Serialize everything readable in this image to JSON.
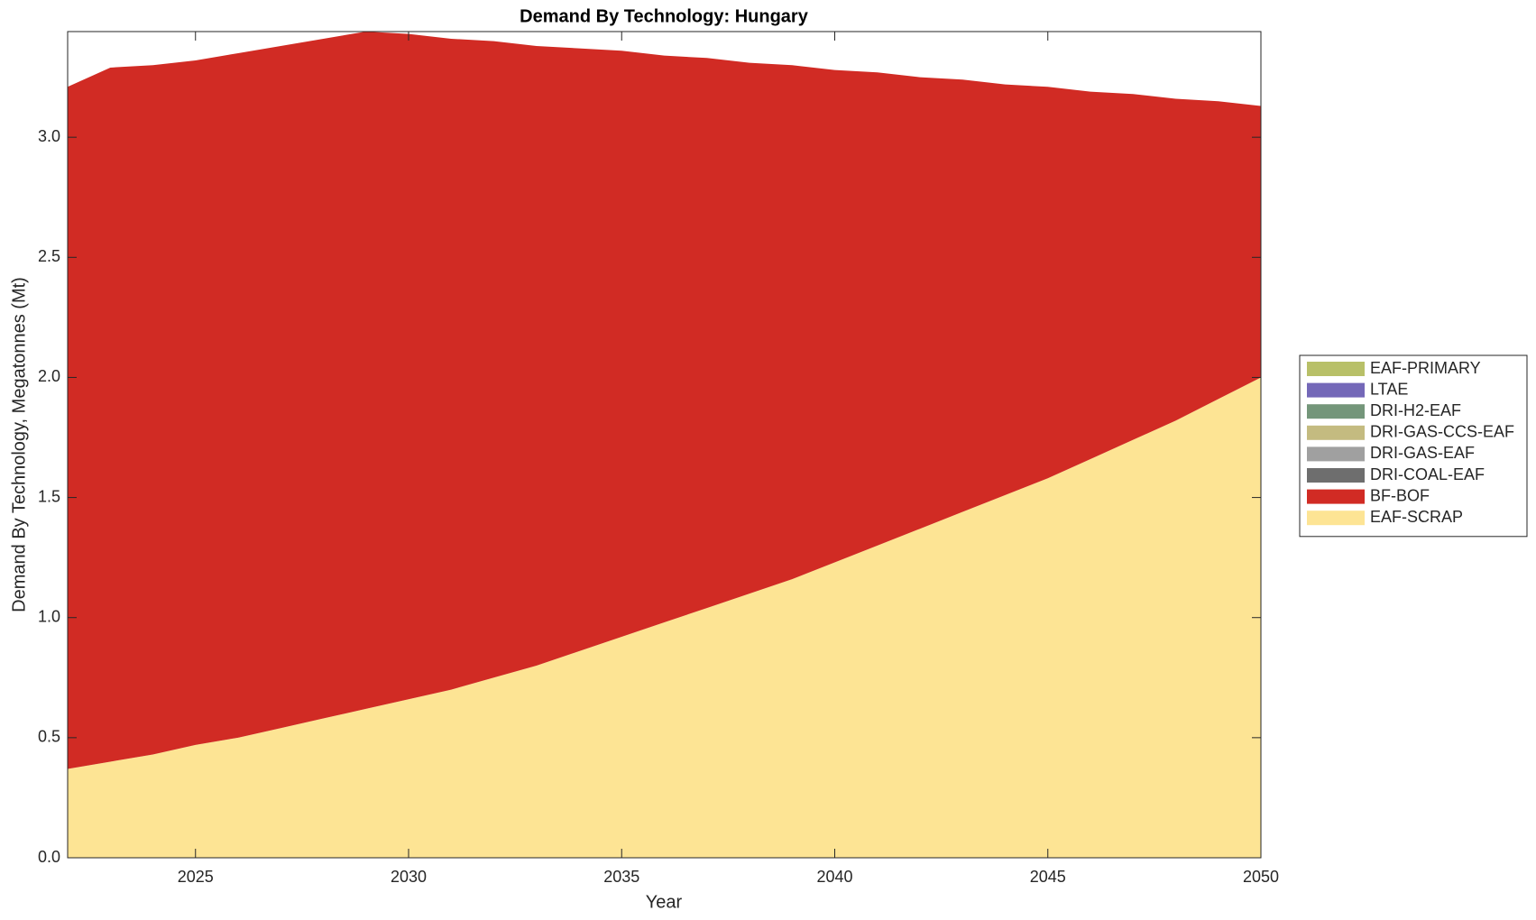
{
  "chart_data": {
    "type": "stacked_area",
    "title": "Demand By Technology: Hungary",
    "xlabel": "Year",
    "ylabel": "Demand By Technology, Megatonnes (Mt)",
    "x": [
      2022,
      2023,
      2024,
      2025,
      2026,
      2027,
      2028,
      2029,
      2030,
      2031,
      2032,
      2033,
      2034,
      2035,
      2036,
      2037,
      2038,
      2039,
      2040,
      2041,
      2042,
      2043,
      2044,
      2045,
      2046,
      2047,
      2048,
      2049,
      2050
    ],
    "xlim": [
      2022,
      2050
    ],
    "xticks": [
      2025,
      2030,
      2035,
      2040,
      2045,
      2050
    ],
    "ylim": [
      0,
      3.44
    ],
    "yticks": [
      {
        "value": 0,
        "label": "0.0"
      },
      0.5,
      {
        "value": 1,
        "label": "1.0"
      },
      1.5,
      {
        "value": 2,
        "label": "2.0"
      },
      2.5,
      {
        "value": 3,
        "label": "3.0"
      }
    ],
    "legend": "right",
    "series": [
      {
        "name": "EAF-PRIMARY",
        "color": "#b8c068",
        "values": [
          0,
          0,
          0,
          0,
          0,
          0,
          0,
          0,
          0,
          0,
          0,
          0,
          0,
          0,
          0,
          0,
          0,
          0,
          0,
          0,
          0,
          0,
          0,
          0,
          0,
          0,
          0,
          0,
          0
        ]
      },
      {
        "name": "LTAE",
        "color": "#7468b8",
        "values": [
          0,
          0,
          0,
          0,
          0,
          0,
          0,
          0,
          0,
          0,
          0,
          0,
          0,
          0,
          0,
          0,
          0,
          0,
          0,
          0,
          0,
          0,
          0,
          0,
          0,
          0,
          0,
          0,
          0
        ]
      },
      {
        "name": "DRI-H2-EAF",
        "color": "#74967a",
        "values": [
          0,
          0,
          0,
          0,
          0,
          0,
          0,
          0,
          0,
          0,
          0,
          0,
          0,
          0,
          0,
          0,
          0,
          0,
          0,
          0,
          0,
          0,
          0,
          0,
          0,
          0,
          0,
          0,
          0
        ]
      },
      {
        "name": "DRI-GAS-CCS-EAF",
        "color": "#c4bb80",
        "values": [
          0,
          0,
          0,
          0,
          0,
          0,
          0,
          0,
          0,
          0,
          0,
          0,
          0,
          0,
          0,
          0,
          0,
          0,
          0,
          0,
          0,
          0,
          0,
          0,
          0,
          0,
          0,
          0,
          0
        ]
      },
      {
        "name": "DRI-GAS-EAF",
        "color": "#a0a0a0",
        "values": [
          0,
          0,
          0,
          0,
          0,
          0,
          0,
          0,
          0,
          0,
          0,
          0,
          0,
          0,
          0,
          0,
          0,
          0,
          0,
          0,
          0,
          0,
          0,
          0,
          0,
          0,
          0,
          0,
          0
        ]
      },
      {
        "name": "DRI-COAL-EAF",
        "color": "#6e6e6e",
        "values": [
          0,
          0,
          0,
          0,
          0,
          0,
          0,
          0,
          0,
          0,
          0,
          0,
          0,
          0,
          0,
          0,
          0,
          0,
          0,
          0,
          0,
          0,
          0,
          0,
          0,
          0,
          0,
          0,
          0
        ]
      },
      {
        "name": "BF-BOF",
        "color": "#d12b24",
        "values": [
          2.84,
          2.89,
          2.87,
          2.85,
          2.85,
          2.84,
          2.83,
          2.82,
          2.77,
          2.71,
          2.65,
          2.58,
          2.51,
          2.44,
          2.36,
          2.29,
          2.21,
          2.14,
          2.05,
          1.97,
          1.88,
          1.8,
          1.71,
          1.63,
          1.53,
          1.44,
          1.34,
          1.24,
          1.13
        ]
      },
      {
        "name": "EAF-SCRAP",
        "color": "#fde494",
        "values": [
          0.37,
          0.4,
          0.43,
          0.47,
          0.5,
          0.54,
          0.58,
          0.62,
          0.66,
          0.7,
          0.75,
          0.8,
          0.86,
          0.92,
          0.98,
          1.04,
          1.1,
          1.16,
          1.23,
          1.3,
          1.37,
          1.44,
          1.51,
          1.58,
          1.66,
          1.74,
          1.82,
          1.91,
          2.0
        ]
      }
    ]
  }
}
